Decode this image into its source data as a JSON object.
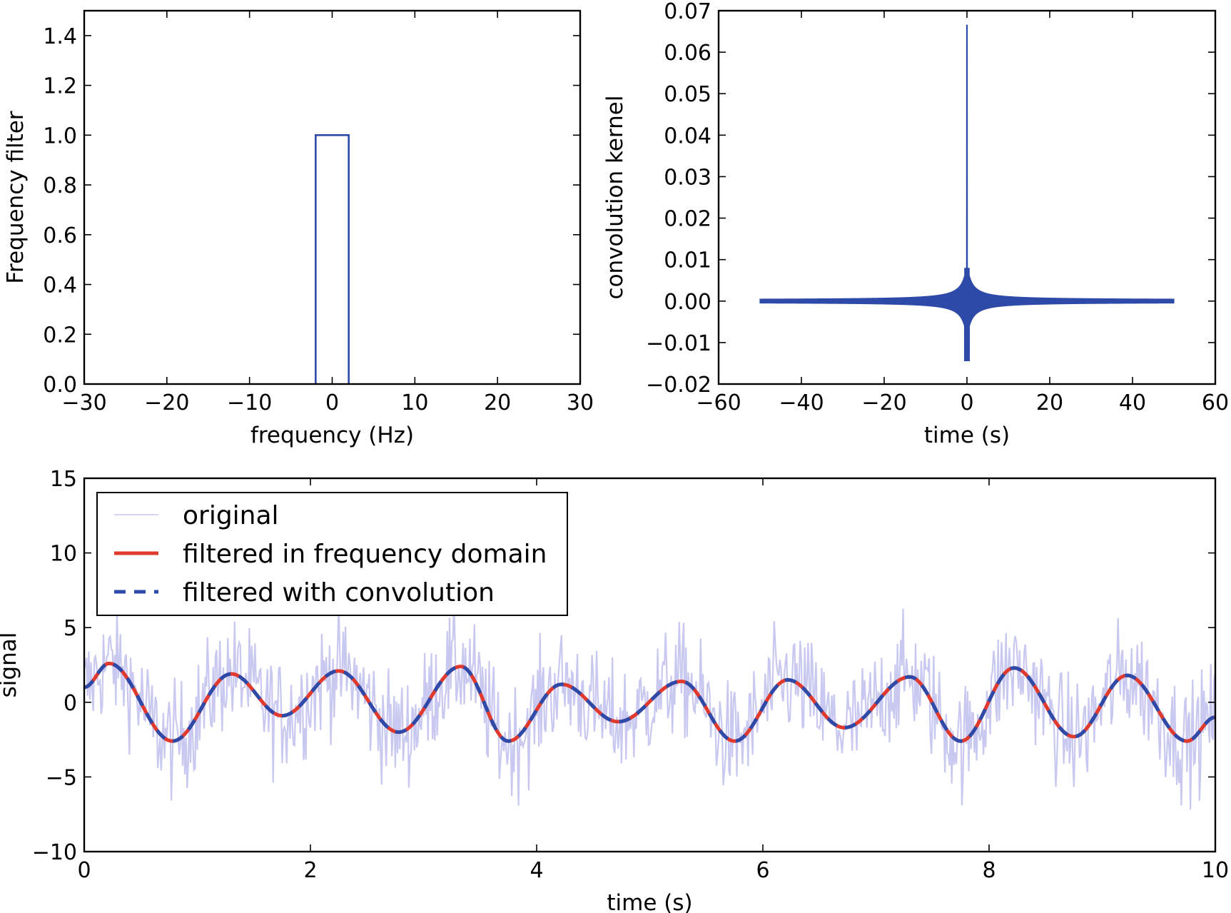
{
  "chart_data": [
    {
      "type": "line",
      "panel": "frequency-filter",
      "xlabel": "frequency (Hz)",
      "ylabel": "Frequency filter",
      "xlim": [
        -30,
        30
      ],
      "ylim": [
        0.0,
        1.5
      ],
      "xticks": [
        -30,
        -20,
        -10,
        0,
        10,
        20,
        30
      ],
      "yticks": [
        0.0,
        0.2,
        0.4,
        0.6,
        0.8,
        1.0,
        1.2,
        1.4
      ],
      "grid": false,
      "series": [
        {
          "color": "#2e4aa8",
          "x": [
            -2,
            -2,
            2,
            2
          ],
          "y": [
            0,
            1,
            1,
            0
          ]
        }
      ]
    },
    {
      "type": "line",
      "panel": "convolution-kernel",
      "xlabel": "time (s)",
      "ylabel": "convolution kernel",
      "xlim": [
        -60,
        60
      ],
      "ylim": [
        -0.02,
        0.07
      ],
      "xticks": [
        -60,
        -40,
        -20,
        0,
        20,
        40,
        60
      ],
      "yticks": [
        -0.02,
        -0.01,
        0.0,
        0.01,
        0.02,
        0.03,
        0.04,
        0.05,
        0.06,
        0.07
      ],
      "grid": false,
      "series": [
        {
          "color": "#2e4aa8",
          "x_range": [
            -50,
            50
          ],
          "peak": 0.0665,
          "min": -0.0145,
          "center": 0
        }
      ]
    },
    {
      "type": "line",
      "panel": "signal",
      "xlabel": "time (s)",
      "ylabel": "signal",
      "xlim": [
        0,
        10
      ],
      "ylim": [
        -10,
        15
      ],
      "xticks": [
        0,
        2,
        4,
        6,
        8,
        10
      ],
      "yticks": [
        -10,
        -5,
        0,
        5,
        10,
        15
      ],
      "grid": false,
      "legend": "top-left",
      "series": [
        {
          "name": "original",
          "color": "#c8c8f0",
          "noise_amplitude": 3.2
        },
        {
          "name": "filtered in frequency domain",
          "color": "#e03a2e",
          "style": "solid",
          "x": [
            0,
            0.22,
            0.78,
            1.3,
            1.75,
            2.25,
            2.78,
            3.33,
            3.75,
            4.22,
            4.72,
            5.28,
            5.75,
            6.22,
            6.72,
            7.3,
            7.75,
            8.22,
            8.75,
            9.22,
            9.75,
            10
          ],
          "y": [
            1.0,
            2.6,
            -2.6,
            1.9,
            -0.9,
            2.1,
            -2.0,
            2.4,
            -2.6,
            1.2,
            -1.3,
            1.4,
            -2.6,
            1.5,
            -1.7,
            1.7,
            -2.6,
            2.3,
            -2.3,
            1.8,
            -2.6,
            -1.0
          ]
        },
        {
          "name": "filtered with convolution",
          "color": "#2e4aa8",
          "style": "dashed",
          "x": [
            0,
            0.22,
            0.78,
            1.3,
            1.75,
            2.25,
            2.78,
            3.33,
            3.75,
            4.22,
            4.72,
            5.28,
            5.75,
            6.22,
            6.72,
            7.3,
            7.75,
            8.22,
            8.75,
            9.22,
            9.75,
            10
          ],
          "y": [
            1.0,
            2.6,
            -2.6,
            1.9,
            -0.9,
            2.1,
            -2.0,
            2.4,
            -2.6,
            1.2,
            -1.3,
            1.4,
            -2.6,
            1.5,
            -1.7,
            1.7,
            -2.6,
            2.3,
            -2.3,
            1.8,
            -2.6,
            -1.0
          ]
        }
      ]
    }
  ]
}
